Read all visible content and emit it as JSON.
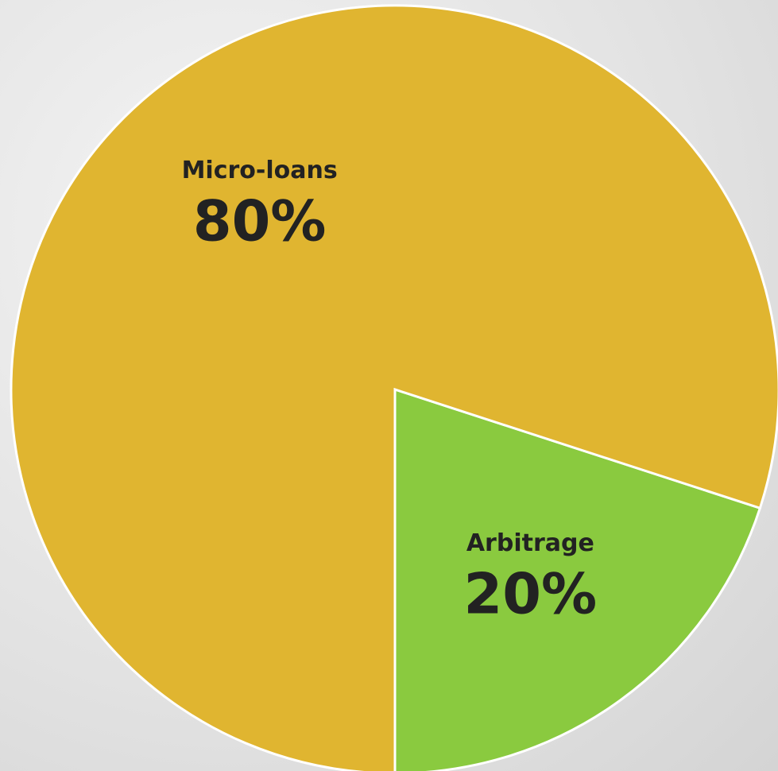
{
  "chart_data": {
    "type": "pie",
    "categories": [
      "Arbitrage",
      "Micro-loans"
    ],
    "values": [
      20,
      80
    ],
    "value_labels": [
      "20%",
      "80%"
    ],
    "colors": [
      "#8aca3f",
      "#e0b530"
    ]
  }
}
